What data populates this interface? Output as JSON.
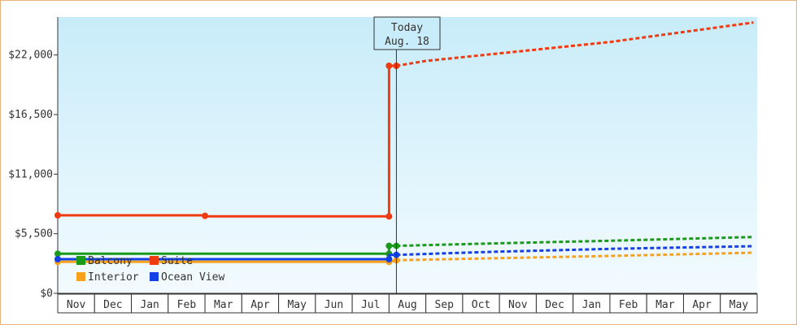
{
  "chart_data": {
    "type": "line",
    "y_ticks": [
      "$0",
      "$5,500",
      "$11,000",
      "$16,500",
      "$22,000"
    ],
    "y_tick_values": [
      0,
      5500,
      11000,
      16500,
      22000
    ],
    "ylim": [
      0,
      25500
    ],
    "months": [
      "Nov",
      "Dec",
      "Jan",
      "Feb",
      "Mar",
      "Apr",
      "May",
      "Jun",
      "Jul",
      "Aug",
      "Sep",
      "Oct",
      "Nov",
      "Dec",
      "Jan",
      "Feb",
      "Mar",
      "Apr",
      "May"
    ],
    "today_label_line1": "Today",
    "today_label_line2": "Aug. 18",
    "today_x": 9.2,
    "grid": false,
    "legend_placement": "bottom-left",
    "background_colors": [
      "#c8ecf9",
      "#f3fbff"
    ],
    "series": [
      {
        "name": "Balcony",
        "color": "#1a9a1a",
        "history": [
          [
            0,
            3650
          ],
          [
            9.0,
            3650
          ],
          [
            9.0,
            4380
          ],
          [
            9.2,
            4380
          ]
        ],
        "markers": [
          [
            0,
            3650
          ],
          [
            9.0,
            3650
          ],
          [
            9.0,
            4380
          ],
          [
            9.2,
            4380
          ]
        ],
        "forecast": [
          [
            9.2,
            4380
          ],
          [
            12,
            4620
          ],
          [
            15,
            4850
          ],
          [
            18.9,
            5200
          ]
        ]
      },
      {
        "name": "Suite",
        "color": "#f03a10",
        "history": [
          [
            0,
            7200
          ],
          [
            4.0,
            7200
          ],
          [
            4.0,
            7100
          ],
          [
            9.0,
            7100
          ],
          [
            9.0,
            21000
          ],
          [
            9.2,
            21000
          ]
        ],
        "markers": [
          [
            0,
            7200
          ],
          [
            4.0,
            7150
          ],
          [
            9.0,
            7100
          ],
          [
            9.0,
            21000
          ],
          [
            9.2,
            21000
          ]
        ],
        "forecast": [
          [
            9.2,
            21000
          ],
          [
            10,
            21450
          ],
          [
            12,
            22150
          ],
          [
            15,
            23200
          ],
          [
            18.9,
            25000
          ]
        ]
      },
      {
        "name": "Interior",
        "color": "#f6a21c",
        "history": [
          [
            0,
            2900
          ],
          [
            9.0,
            2900
          ],
          [
            9.2,
            3050
          ]
        ],
        "markers": [
          [
            0,
            2900
          ],
          [
            9.0,
            2900
          ],
          [
            9.2,
            3050
          ]
        ],
        "forecast": [
          [
            9.2,
            3050
          ],
          [
            12,
            3250
          ],
          [
            15,
            3450
          ],
          [
            18.9,
            3750
          ]
        ]
      },
      {
        "name": "Ocean View",
        "color": "#1440e8",
        "history": [
          [
            0,
            3150
          ],
          [
            9.0,
            3150
          ],
          [
            9.0,
            3550
          ],
          [
            9.2,
            3550
          ]
        ],
        "markers": [
          [
            0,
            3150
          ],
          [
            9.0,
            3150
          ],
          [
            9.2,
            3550
          ]
        ],
        "forecast": [
          [
            9.2,
            3550
          ],
          [
            12,
            3850
          ],
          [
            15,
            4100
          ],
          [
            18.9,
            4350
          ]
        ]
      }
    ]
  }
}
